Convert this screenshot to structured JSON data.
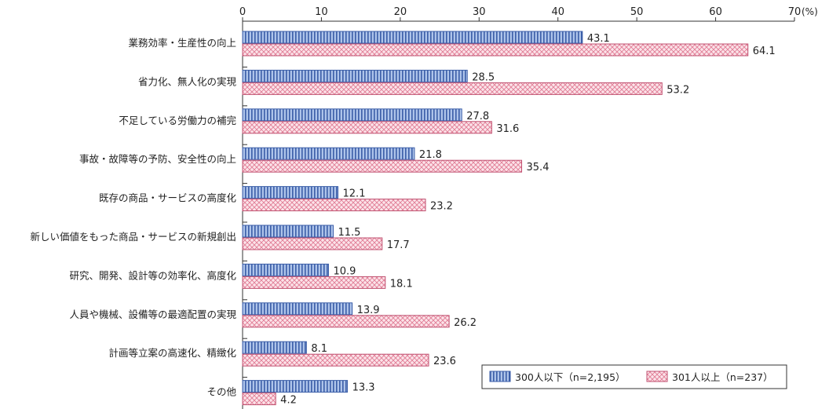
{
  "chart_data": {
    "type": "bar",
    "orientation": "horizontal",
    "unit": "(%)",
    "xlim": [
      0,
      70
    ],
    "xticks": [
      0,
      10,
      20,
      30,
      40,
      50,
      60,
      70
    ],
    "legend_position": "bottom-right",
    "grid": false,
    "categories": [
      "業務効率・生産性の向上",
      "省力化、無人化の実現",
      "不足している労働力の補完",
      "事故・故障等の予防、安全性の向上",
      "既存の商品・サービスの高度化",
      "新しい価値をもった商品・サービスの新規創出",
      "研究、開発、設計等の効率化、高度化",
      "人員や機械、設備等の最適配置の実現",
      "計画等立案の高速化、精緻化",
      "その他"
    ],
    "series": [
      {
        "name": "300人以下（n=2,195）",
        "pattern": "vertical-stripes",
        "stroke": "#3b5ea8",
        "fill": "#aec4ea",
        "values": [
          43.1,
          28.5,
          27.8,
          21.8,
          12.1,
          11.5,
          10.9,
          13.9,
          8.1,
          13.3
        ]
      },
      {
        "name": "301人以上（n=237）",
        "pattern": "crosshatch",
        "stroke": "#c05070",
        "fill": "#f7d0da",
        "values": [
          64.1,
          53.2,
          31.6,
          35.4,
          23.2,
          17.7,
          18.1,
          26.2,
          23.6,
          4.2
        ]
      }
    ]
  }
}
